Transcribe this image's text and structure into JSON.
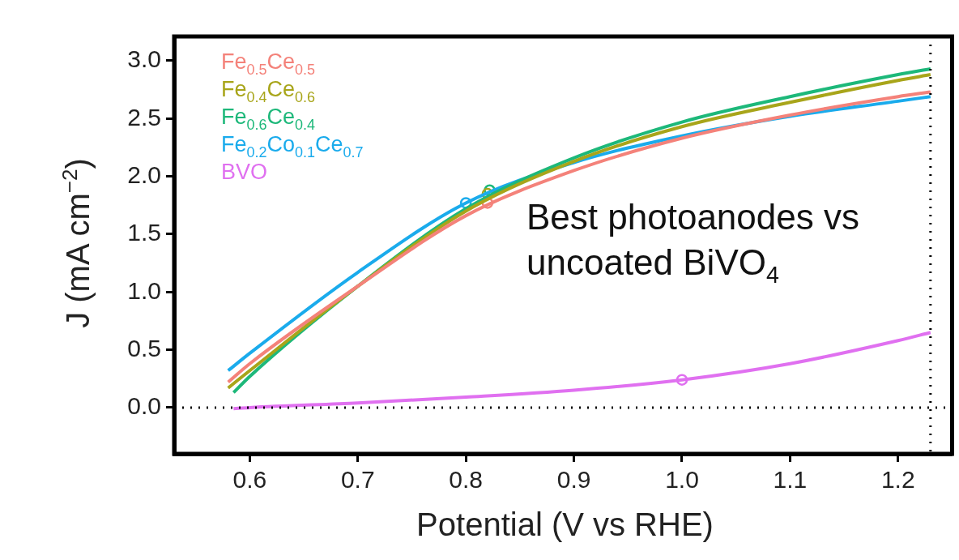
{
  "chart_data": {
    "type": "line",
    "xlabel": "Potential (V vs RHE)",
    "ylabel": "J (mA cm$^{−2}$)",
    "xlim": [
      0.53,
      1.25
    ],
    "xticks": [
      0.6,
      0.7,
      0.8,
      0.9,
      {
        "value": 1,
        "label": "1.0"
      },
      1.1,
      1.2
    ],
    "ylim": [
      -0.4,
      3.21
    ],
    "yticks": [
      {
        "value": 0,
        "label": "0.0"
      },
      0.5,
      {
        "value": 1,
        "label": "1.0"
      },
      1.5,
      {
        "value": 2,
        "label": "2.0"
      },
      2.5,
      {
        "value": 3,
        "label": "3.0"
      }
    ],
    "grid": false,
    "legend": "top left",
    "ref_lines": [
      {
        "axis": "y",
        "value": 0,
        "color": "#000000",
        "line_style": "dotted"
      },
      {
        "axis": "x",
        "value": 1.23,
        "color": "#000000",
        "line_style": "dotted"
      }
    ],
    "annotations": [
      "Best photoanodes vs uncoated BiVO$_{4}$"
    ],
    "series": [
      {
        "name": "Fe$_{0.5}$Ce$_{0.5}$",
        "color": "#f4827a",
        "marker": "none",
        "x": [
          0.58,
          0.6,
          0.7,
          0.8,
          0.9,
          1.0,
          1.1,
          1.2,
          1.23
        ],
        "values": [
          0.22,
          0.38,
          1.05,
          1.66,
          2.05,
          2.33,
          2.53,
          2.69,
          2.73
        ]
      },
      {
        "name": "Fe$_{0.4}$Ce$_{0.6}$",
        "color": "#a8a51a",
        "marker": "none",
        "x": [
          0.58,
          0.6,
          0.7,
          0.8,
          0.9,
          1.0,
          1.1,
          1.2,
          1.23
        ],
        "values": [
          0.17,
          0.32,
          1.05,
          1.7,
          2.13,
          2.43,
          2.64,
          2.83,
          2.88
        ]
      },
      {
        "name": "Fe$_{0.6}$Ce$_{0.4}$",
        "color": "#1db87a",
        "marker": "none",
        "x": [
          0.585,
          0.6,
          0.7,
          0.8,
          0.9,
          1.0,
          1.1,
          1.2,
          1.23
        ],
        "values": [
          0.13,
          0.27,
          1.05,
          1.72,
          2.16,
          2.47,
          2.69,
          2.88,
          2.93
        ]
      },
      {
        "name": "Fe$_{0.2}$Co$_{0.1}$Ce$_{0.7}$",
        "color": "#1aabec",
        "marker": "none",
        "x": [
          0.58,
          0.6,
          0.7,
          0.8,
          0.9,
          1.0,
          1.1,
          1.2,
          1.23
        ],
        "values": [
          0.32,
          0.47,
          1.17,
          1.77,
          2.12,
          2.35,
          2.52,
          2.65,
          2.69
        ]
      },
      {
        "name": "BVO",
        "color": "#e070f0",
        "marker": "none",
        "x": [
          0.585,
          0.6,
          0.7,
          0.8,
          0.9,
          1.0,
          1.1,
          1.2,
          1.23
        ],
        "values": [
          -0.01,
          0.0,
          0.04,
          0.09,
          0.15,
          0.24,
          0.38,
          0.58,
          0.65
        ]
      },
      {
        "type": "scatter",
        "color": "#f4827a",
        "marker": "circle",
        "x": [
          0.82
        ],
        "values": [
          1.77
        ]
      },
      {
        "type": "scatter",
        "color": "#a8a51a",
        "marker": "circle",
        "x": [
          0.82
        ],
        "values": [
          1.85
        ]
      },
      {
        "type": "scatter",
        "color": "#1db87a",
        "marker": "circle",
        "x": [
          0.822
        ],
        "values": [
          1.88
        ]
      },
      {
        "type": "scatter",
        "color": "#1aabec",
        "marker": "circle",
        "x": [
          0.8
        ],
        "values": [
          1.77
        ]
      },
      {
        "type": "scatter",
        "color": "#e070f0",
        "marker": "circle",
        "x": [
          1.0
        ],
        "values": [
          0.24
        ]
      }
    ]
  }
}
